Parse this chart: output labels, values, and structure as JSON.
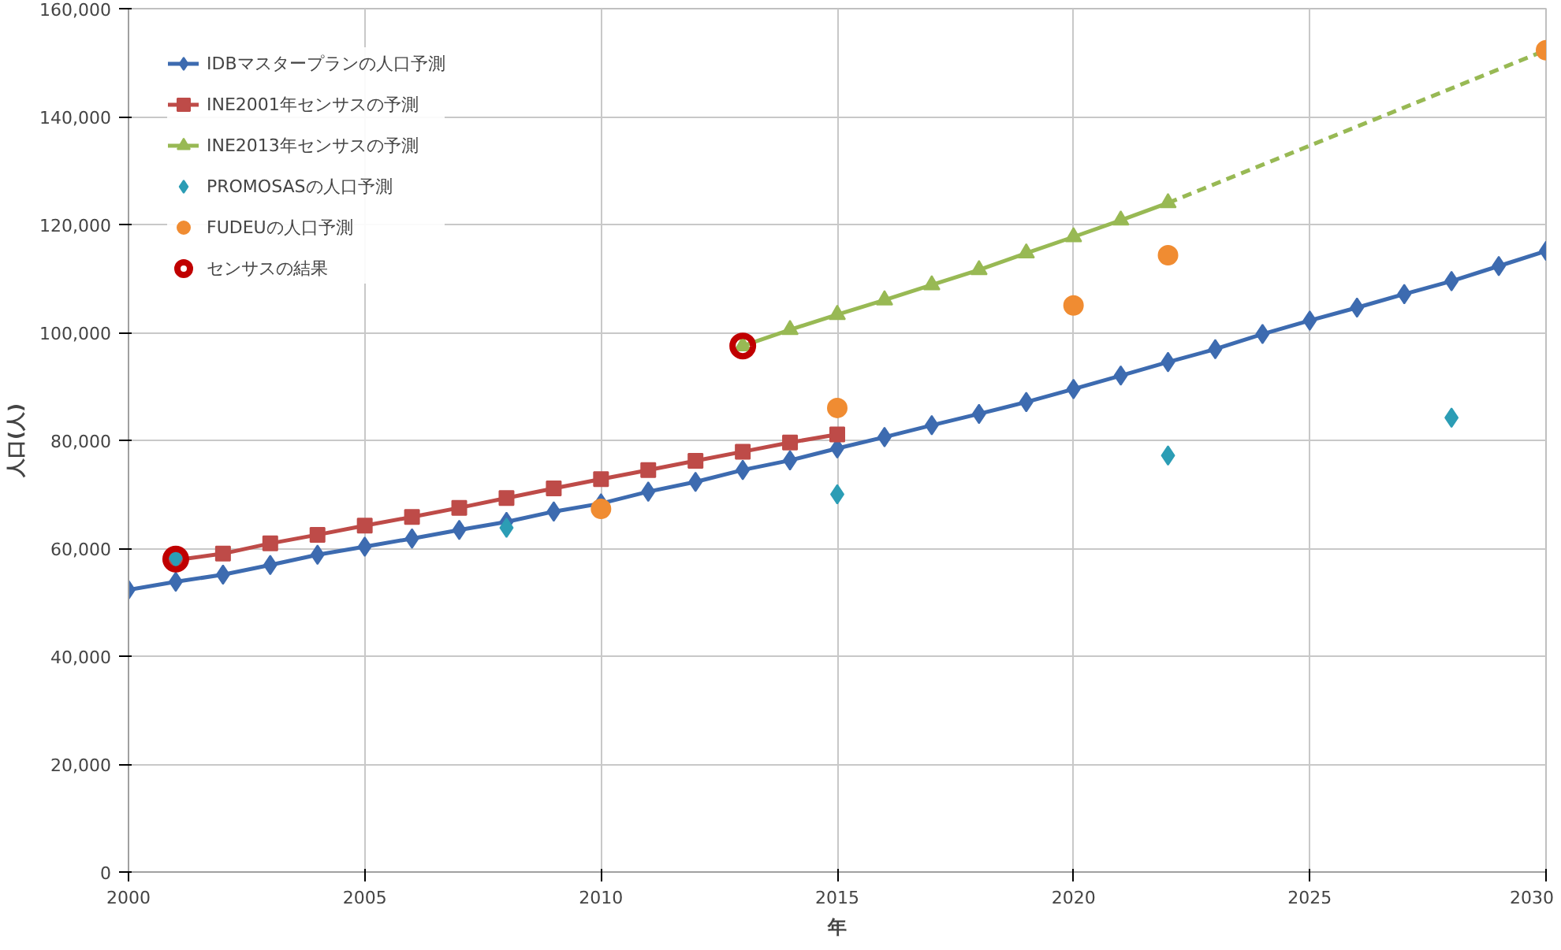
{
  "chart_data": {
    "type": "line",
    "xlabel": "年",
    "ylabel": "人口(人)",
    "xlim": [
      2000,
      2030
    ],
    "xticks": [
      2000,
      2005,
      2010,
      2015,
      2020,
      2025,
      2030
    ],
    "ylim": [
      0,
      160000
    ],
    "yticks": [
      0,
      {
        "value": 20000,
        "label": "20,000"
      },
      {
        "value": 40000,
        "label": "40,000"
      },
      {
        "value": 60000,
        "label": "60,000"
      },
      {
        "value": 80000,
        "label": "80,000"
      },
      {
        "value": 100000,
        "label": "100,000"
      },
      {
        "value": 120000,
        "label": "120,000"
      },
      {
        "value": 140000,
        "label": "140,000"
      },
      {
        "value": 160000,
        "label": "160,000"
      }
    ],
    "grid": true,
    "legend": "top left",
    "series": [
      {
        "name": "IDBマスタープランの人口予測",
        "marker": "diamond",
        "line_style": "solid",
        "color": "#3d6bb0",
        "x": [
          2000,
          2001,
          2002,
          2003,
          2004,
          2005,
          2006,
          2007,
          2008,
          2009,
          2010,
          2011,
          2012,
          2013,
          2014,
          2015,
          2016,
          2017,
          2018,
          2019,
          2020,
          2021,
          2022,
          2023,
          2024,
          2025,
          2026,
          2027,
          2028,
          2029,
          2030
        ],
        "values": [
          52300,
          53800,
          55100,
          56900,
          58800,
          60300,
          61800,
          63400,
          64900,
          66800,
          68300,
          70500,
          72300,
          74500,
          76300,
          78500,
          80600,
          82800,
          84900,
          87100,
          89500,
          92000,
          94500,
          96900,
          99700,
          102200,
          104600,
          107100,
          109500,
          112300,
          115100
        ]
      },
      {
        "name": "INE2001年センサスの予測",
        "marker": "square",
        "line_style": "solid",
        "color": "#be4b48",
        "x": [
          2001,
          2002,
          2003,
          2004,
          2005,
          2006,
          2007,
          2008,
          2009,
          2010,
          2011,
          2012,
          2013,
          2014,
          2015
        ],
        "values": [
          57800,
          59000,
          60900,
          62500,
          64200,
          65800,
          67500,
          69300,
          71100,
          72800,
          74500,
          76200,
          77900,
          79600,
          81100
        ]
      },
      {
        "name": "INE2013年センサスの予測",
        "marker": "triangle",
        "line_style": "solid",
        "color": "#98b954",
        "x": [
          2013,
          2014,
          2015,
          2016,
          2017,
          2018,
          2019,
          2020,
          2021,
          2022
        ],
        "values": [
          97500,
          100500,
          103300,
          106000,
          108800,
          111600,
          114700,
          117700,
          120800,
          124000
        ]
      },
      {
        "marker": "none",
        "line_style": "dashed",
        "color": "#98b954",
        "x": [
          2022,
          2030
        ],
        "values": [
          124000,
          152300
        ]
      },
      {
        "name": "PROMOSASの人口予測",
        "type": "scatter",
        "marker": "diamond",
        "color": "#2c9db5",
        "x": [
          2001,
          2008,
          2015,
          2022,
          2028
        ],
        "values": [
          58200,
          63800,
          70000,
          77200,
          84200
        ]
      },
      {
        "name": "FUDEUの人口予測",
        "type": "scatter",
        "marker": "circle",
        "color": "#f08c32",
        "x": [
          2010,
          2015,
          2020,
          2022,
          2030
        ],
        "values": [
          67300,
          86000,
          105000,
          114300,
          152300
        ]
      },
      {
        "name": "センサスの結果",
        "type": "scatter",
        "marker": "circle_open",
        "color": "#c00000",
        "x": [
          2001,
          2013
        ],
        "values": [
          58000,
          97500
        ]
      }
    ]
  }
}
